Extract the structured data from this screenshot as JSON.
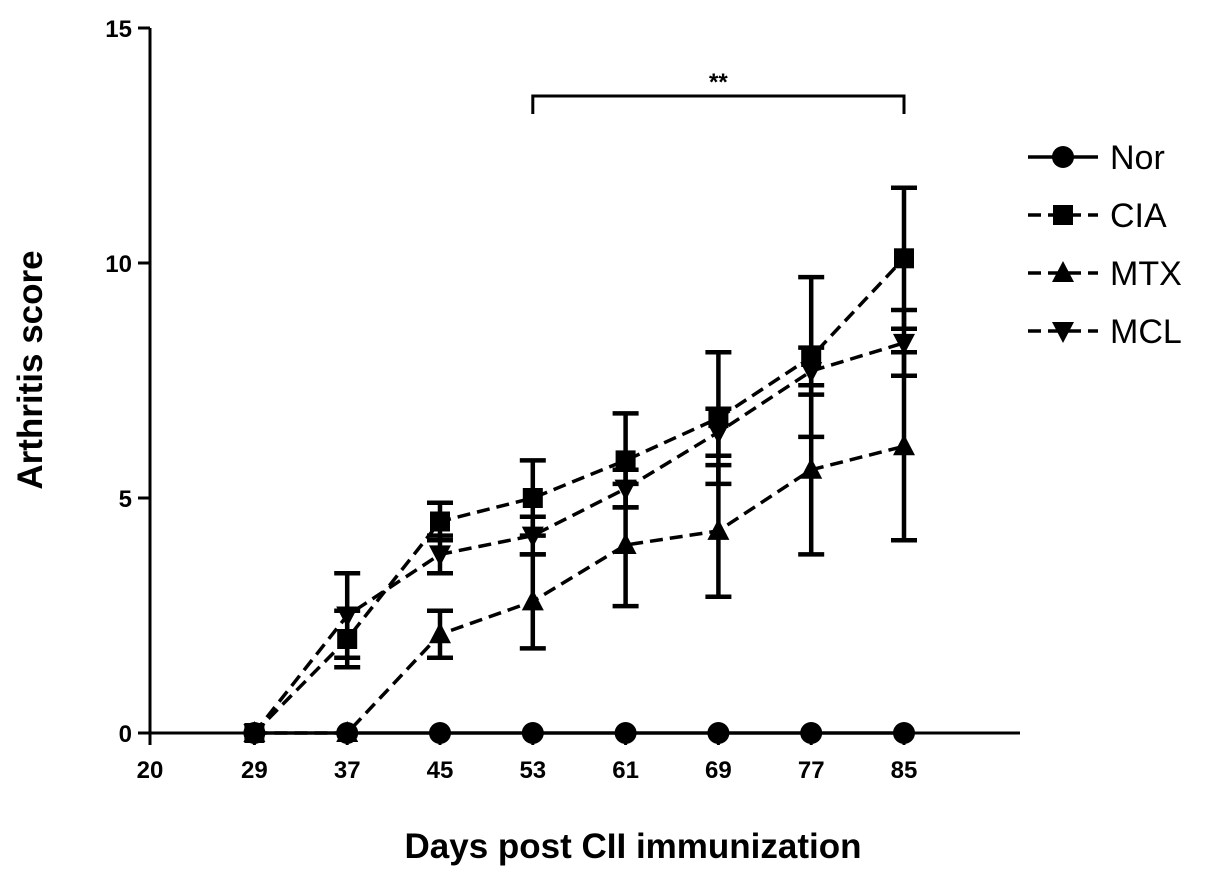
{
  "chart_data": {
    "type": "line",
    "title": "",
    "xlabel": "Days post CII immunization",
    "ylabel": "Arthritis score",
    "xlim": [
      20,
      95
    ],
    "ylim": [
      0,
      15
    ],
    "xticks": [
      20,
      29,
      37,
      45,
      53,
      61,
      69,
      77,
      85
    ],
    "yticks": [
      0,
      5,
      10,
      15
    ],
    "x": [
      29,
      37,
      45,
      53,
      61,
      69,
      77,
      85
    ],
    "legend_position": "right",
    "grid": false,
    "series": [
      {
        "name": "Nor",
        "marker": "circle",
        "dash": "solid",
        "values": [
          0,
          0,
          0,
          0,
          0,
          0,
          0,
          0
        ],
        "errors": [
          0,
          0,
          0,
          0,
          0,
          0,
          0,
          0
        ]
      },
      {
        "name": "CIA",
        "marker": "square",
        "dash": "dashed",
        "values": [
          0,
          2.0,
          4.5,
          5.0,
          5.8,
          6.7,
          8.0,
          10.1
        ],
        "errors": [
          0,
          0.6,
          0.4,
          0.8,
          1.0,
          1.4,
          1.7,
          1.5
        ]
      },
      {
        "name": "MTX",
        "marker": "triangle-up",
        "dash": "dashed",
        "values": [
          0,
          0,
          2.1,
          2.8,
          4.0,
          4.3,
          5.6,
          6.1
        ],
        "errors": [
          0,
          0,
          0.5,
          1.0,
          1.3,
          1.4,
          1.8,
          2.0
        ]
      },
      {
        "name": "MCL",
        "marker": "triangle-down",
        "dash": "dashed",
        "values": [
          0,
          2.5,
          3.8,
          4.2,
          5.2,
          6.4,
          7.7,
          8.3
        ],
        "errors": [
          0,
          0.9,
          0.4,
          0.4,
          0.4,
          0.5,
          0.5,
          0.7
        ]
      }
    ],
    "annotations": [
      {
        "text": "**",
        "x_start": 53,
        "x_end": 85
      }
    ]
  }
}
